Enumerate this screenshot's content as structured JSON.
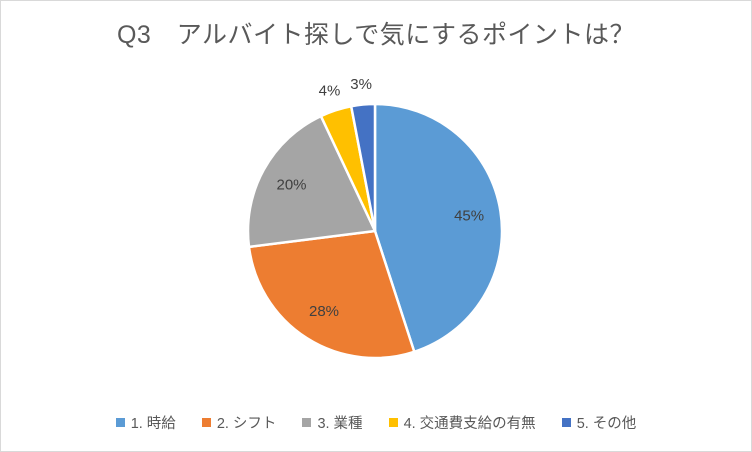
{
  "chart_data": {
    "type": "pie",
    "title": "Q3　アルバイト探しで気にするポイントは？",
    "categories": [
      "1. 時給",
      "2. シフト",
      "3. 業種",
      "4. 交通費支給の有無",
      "5. その他"
    ],
    "values": [
      45,
      28,
      20,
      4,
      3
    ],
    "data_labels": [
      "45%",
      "28%",
      "20%",
      "4%",
      "3%"
    ],
    "colors": [
      "#5B9BD5",
      "#ED7D31",
      "#A5A5A5",
      "#FFC000",
      "#4472C4"
    ],
    "start_angle_deg": 0,
    "direction": "clockwise",
    "legend_position": "bottom",
    "title_color": "#595959",
    "label_text_color": "#404040",
    "legend_text_color": "#595959",
    "slice_border_color": "#FFFFFF",
    "chart_border_color": "#D9D9D9",
    "background_color": "#FFFFFF"
  },
  "legend": {
    "items": [
      {
        "label": "1. 時給",
        "color": "#5B9BD5"
      },
      {
        "label": "2. シフト",
        "color": "#ED7D31"
      },
      {
        "label": "3. 業種",
        "color": "#A5A5A5"
      },
      {
        "label": "4. 交通費支給の有無",
        "color": "#FFC000"
      },
      {
        "label": "5. その他",
        "color": "#4472C4"
      }
    ]
  }
}
